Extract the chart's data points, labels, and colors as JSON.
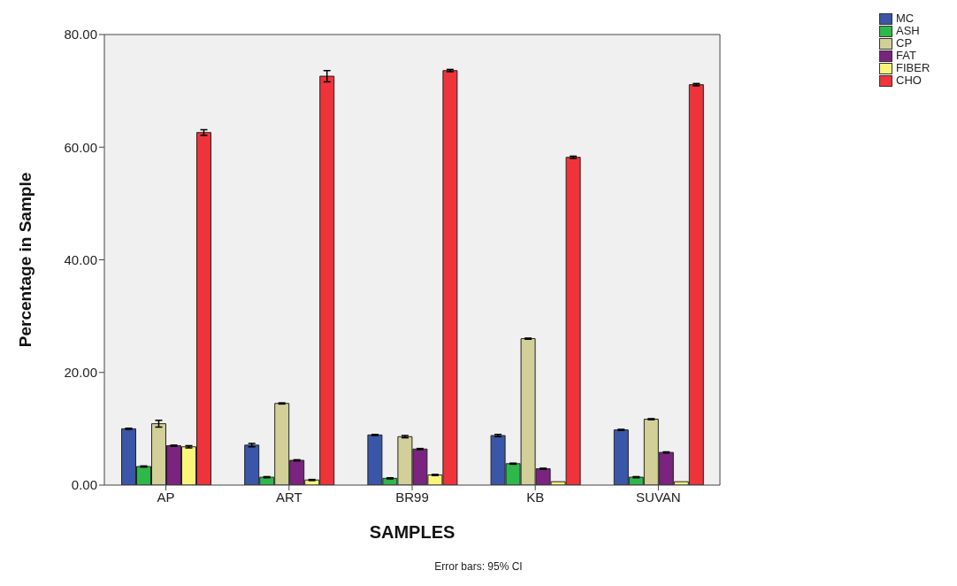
{
  "chart_data": {
    "type": "bar",
    "xlabel": "SAMPLES",
    "ylabel": "Percentage in Sample",
    "categories": [
      "AP",
      "ART",
      "BR99",
      "KB",
      "SUVAN"
    ],
    "series": [
      {
        "name": "MC",
        "color": "#3a56a8",
        "values": [
          10.0,
          7.1,
          8.9,
          8.8,
          9.8
        ],
        "errors": [
          0.1,
          0.3,
          0.1,
          0.2,
          0.1
        ]
      },
      {
        "name": "ASH",
        "color": "#2eb84a",
        "values": [
          3.3,
          1.4,
          1.2,
          3.8,
          1.4
        ],
        "errors": [
          0.1,
          0.1,
          0.1,
          0.1,
          0.1
        ]
      },
      {
        "name": "CP",
        "color": "#d3cf98",
        "values": [
          10.9,
          14.5,
          8.6,
          26.0,
          11.7
        ],
        "errors": [
          0.6,
          0.1,
          0.2,
          0.1,
          0.1
        ]
      },
      {
        "name": "FAT",
        "color": "#7a2480",
        "values": [
          7.0,
          4.4,
          6.4,
          2.9,
          5.8
        ],
        "errors": [
          0.1,
          0.1,
          0.1,
          0.1,
          0.1
        ]
      },
      {
        "name": "FIBER",
        "color": "#faf578",
        "values": [
          6.8,
          0.9,
          1.8,
          0.6,
          0.6
        ],
        "errors": [
          0.2,
          0.1,
          0.1,
          null,
          null
        ]
      },
      {
        "name": "CHO",
        "color": "#ef333a",
        "values": [
          62.6,
          72.6,
          73.6,
          58.2,
          71.1
        ],
        "errors": [
          0.5,
          1.0,
          0.2,
          0.2,
          0.2
        ]
      }
    ],
    "ylim": [
      0,
      80
    ],
    "yticks": [
      {
        "value": 0,
        "label": "0.00"
      },
      {
        "value": 20,
        "label": "20.00"
      },
      {
        "value": 40,
        "label": "40.00"
      },
      {
        "value": 60,
        "label": "60.00"
      },
      {
        "value": 80,
        "label": "80.00"
      }
    ],
    "grid": false,
    "legend": "top right",
    "annotations": [
      "Error bars: 95% CI"
    ]
  }
}
